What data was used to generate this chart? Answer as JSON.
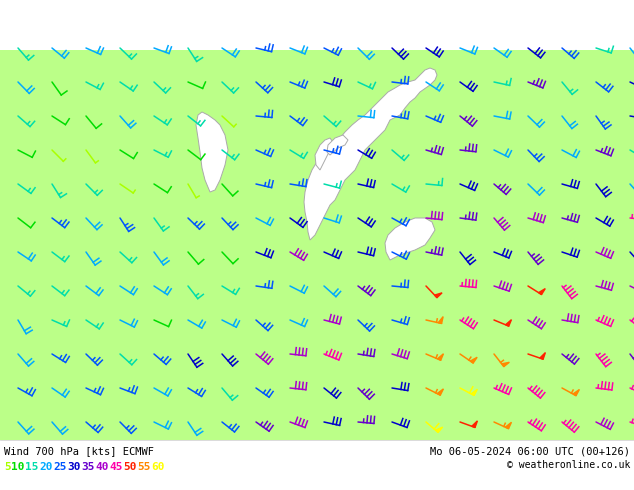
{
  "title_left": "Wind 700 hPa [kts] ECMWF",
  "title_right": "Mo 06-05-2024 06:00 UTC (00+126)",
  "copyright": "© weatheronline.co.uk",
  "legend_values": [
    5,
    10,
    15,
    20,
    25,
    30,
    35,
    40,
    45,
    50,
    55,
    60
  ],
  "legend_colors": [
    "#aaff00",
    "#00dd00",
    "#00ddaa",
    "#00aaff",
    "#0055ff",
    "#0000cc",
    "#6600cc",
    "#aa00cc",
    "#ff00aa",
    "#ff2200",
    "#ff8800",
    "#ffff00"
  ],
  "bg_color": "#ffffff",
  "sea_color": "#bbff88",
  "land_color": "#e8e8e8",
  "coast_color": "#aaaaaa",
  "fig_width": 6.34,
  "fig_height": 4.9,
  "dpi": 100
}
